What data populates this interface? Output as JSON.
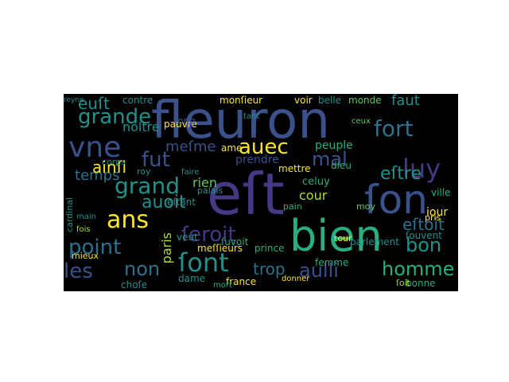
{
  "wordcloud": {
    "words": [
      "fleuron",
      "eſt",
      "ſon",
      "bien",
      "vne",
      "luy",
      "auec",
      "fort",
      "grande",
      "grand",
      "ſont",
      "ans",
      "point",
      "mal",
      "fut",
      "ſeroit",
      "les",
      "non",
      "auoit",
      "homme",
      "bon",
      "aulli",
      "trop",
      "eſtre",
      "temps",
      "ainſi",
      "faut",
      "rien",
      "meſme",
      "euſt",
      "noltre",
      "monſieur",
      "voir",
      "belle",
      "monde",
      "eſtoit",
      "peuple",
      "cour",
      "iour",
      "paris",
      "prince",
      "dame",
      "france",
      "femme",
      "bonne",
      "ville",
      "prendre",
      "mettre",
      "celuy",
      "dieu",
      "eſtant",
      "ſuvoit",
      "meſſieurs",
      "ame",
      "palais",
      "choſe",
      "mieux",
      "veut",
      "parlement",
      "ſouvent",
      "mort",
      "contre",
      "pauvre",
      "roy",
      "corps",
      "cardinal",
      "fois",
      "main",
      "long",
      "pain",
      "tour",
      "moy",
      "pris",
      "donner",
      "faire",
      "ceux",
      "reyne",
      "tant",
      "ſoit"
    ]
  },
  "colors": {
    "background": "#000000",
    "page": "#ffffff",
    "palette": [
      "#3b518b",
      "#443983",
      "#2c728e",
      "#21918c",
      "#28ae80",
      "#5ec962",
      "#addc30",
      "#fde725",
      "#471365"
    ]
  }
}
